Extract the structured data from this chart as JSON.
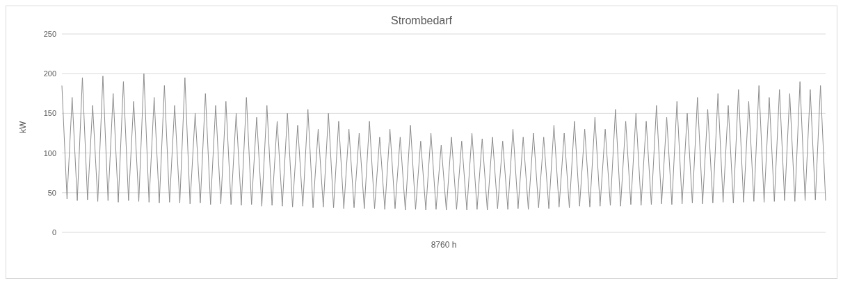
{
  "chart_data": {
    "type": "line",
    "title": "Strombedarf",
    "xlabel": "8760 h",
    "ylabel": "kW",
    "categories": [
      null,
      null,
      null,
      null,
      null,
      null,
      null,
      null,
      null,
      null,
      null,
      null,
      null,
      null,
      null,
      null,
      null,
      null,
      null,
      null,
      null,
      null,
      null,
      null,
      null,
      null,
      null,
      null,
      null,
      null,
      null,
      null,
      null,
      null,
      null,
      null,
      null,
      null,
      null,
      null,
      null,
      null,
      null,
      null,
      null,
      null,
      null,
      null,
      null,
      null,
      null,
      null,
      null,
      null,
      null,
      null,
      null,
      null,
      null,
      null,
      null,
      null,
      null,
      null,
      null,
      null,
      null,
      null,
      null,
      null,
      null,
      null,
      null,
      null,
      null,
      null,
      null,
      null,
      null,
      null,
      null,
      null,
      null,
      null,
      null,
      null,
      null,
      null,
      null,
      null,
      null,
      null,
      null,
      null,
      null,
      null,
      null,
      null,
      null,
      null,
      null,
      null,
      null,
      null,
      null,
      null,
      null,
      null,
      null,
      null,
      null,
      null,
      null,
      null,
      null,
      null,
      null,
      null,
      null,
      null,
      null,
      null,
      null,
      null,
      null,
      null,
      null,
      null,
      null,
      null,
      null,
      null,
      null,
      null,
      null,
      null,
      null,
      null,
      null,
      null,
      null,
      null,
      null,
      null,
      null,
      null,
      null,
      null,
      null,
      null
    ],
    "values": [
      185,
      42,
      170,
      40,
      195,
      41,
      160,
      39,
      197,
      40,
      175,
      38,
      190,
      40,
      165,
      39,
      200,
      38,
      170,
      37,
      185,
      38,
      160,
      37,
      195,
      36,
      150,
      37,
      175,
      35,
      160,
      36,
      165,
      35,
      150,
      34,
      170,
      35,
      145,
      33,
      160,
      34,
      140,
      33,
      150,
      32,
      135,
      33,
      155,
      31,
      130,
      32,
      150,
      31,
      140,
      30,
      130,
      31,
      125,
      30,
      140,
      30,
      120,
      29,
      130,
      30,
      120,
      28,
      135,
      29,
      115,
      28,
      125,
      29,
      110,
      28,
      120,
      29,
      115,
      28,
      125,
      29,
      118,
      28,
      120,
      30,
      115,
      29,
      130,
      30,
      120,
      29,
      125,
      31,
      120,
      30,
      135,
      32,
      125,
      31,
      140,
      33,
      130,
      32,
      145,
      33,
      130,
      34,
      155,
      33,
      140,
      35,
      150,
      34,
      140,
      35,
      160,
      36,
      145,
      35,
      165,
      36,
      150,
      37,
      170,
      36,
      155,
      37,
      175,
      38,
      160,
      37,
      180,
      38,
      165,
      39,
      185,
      38,
      170,
      39,
      180,
      40,
      175,
      39,
      190,
      40,
      180,
      41,
      185,
      40
    ],
    "color": "#8c8c8c",
    "ylim": [
      0,
      250
    ],
    "yticks": [
      0,
      50,
      100,
      150,
      200,
      250
    ],
    "grid": "y",
    "marker": "none",
    "line_style": "solid"
  }
}
